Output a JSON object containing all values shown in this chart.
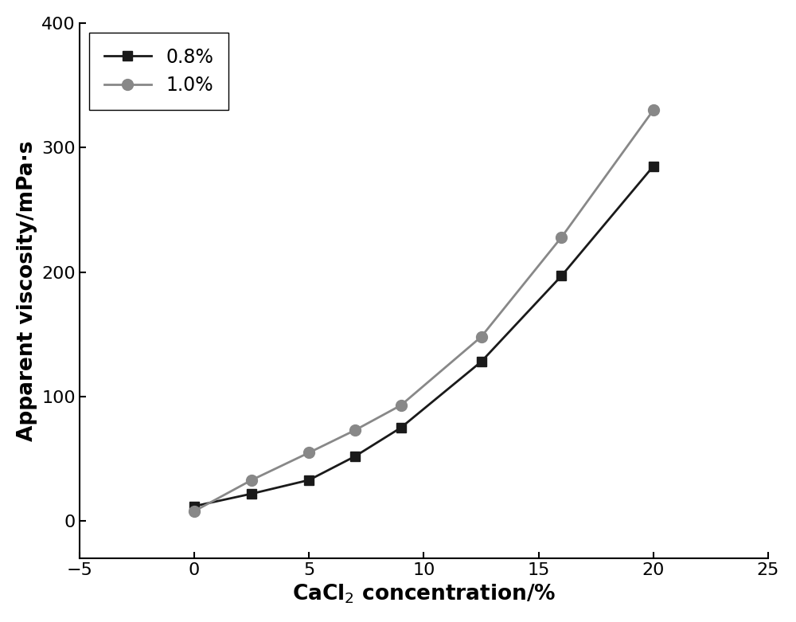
{
  "series": [
    {
      "label": "0.8%",
      "x": [
        0,
        2.5,
        5,
        7,
        9,
        12.5,
        16,
        20
      ],
      "y": [
        12,
        22,
        33,
        52,
        75,
        128,
        197,
        285
      ],
      "color": "#1a1a1a",
      "marker": "s",
      "marker_size": 9,
      "linewidth": 2.0
    },
    {
      "label": "1.0%",
      "x": [
        0,
        2.5,
        5,
        7,
        9,
        12.5,
        16,
        20
      ],
      "y": [
        8,
        33,
        55,
        73,
        93,
        148,
        228,
        330
      ],
      "color": "#888888",
      "marker": "o",
      "marker_size": 10,
      "linewidth": 2.0
    }
  ],
  "xlabel": "CaCl$_2$ concentration/%",
  "ylabel": "Apparent viscosity/mPa·s",
  "xlim": [
    -5,
    25
  ],
  "ylim": [
    -30,
    400
  ],
  "xticks": [
    -5,
    0,
    5,
    10,
    15,
    20,
    25
  ],
  "yticks": [
    0,
    100,
    200,
    300,
    400
  ],
  "legend_loc": "upper left",
  "legend_fontsize": 17,
  "axis_label_fontsize": 19,
  "tick_fontsize": 16,
  "background_color": "#ffffff",
  "figure_bg": "#ffffff"
}
